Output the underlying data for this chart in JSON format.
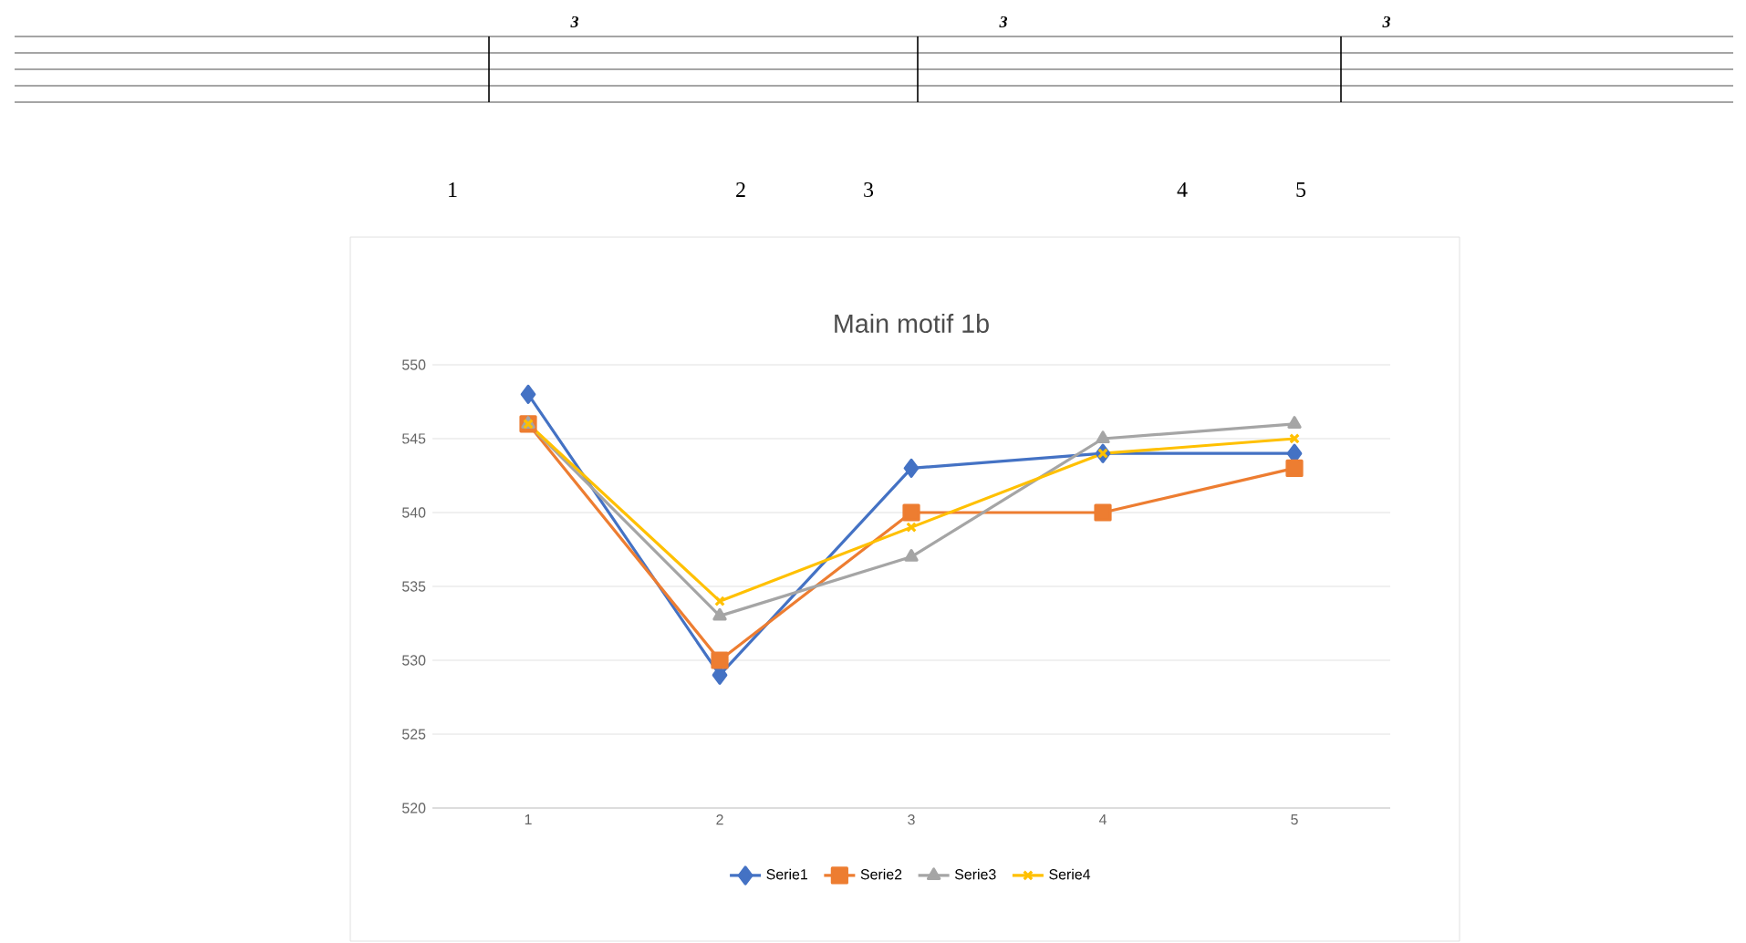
{
  "chart_data": {
    "type": "line",
    "title": "Main motif 1b",
    "categories": [
      "1",
      "2",
      "3",
      "4",
      "5"
    ],
    "series": [
      {
        "name": "Serie1",
        "color": "#4472c4",
        "marker": "diamond",
        "values": [
          548,
          529,
          543,
          544,
          544
        ]
      },
      {
        "name": "Serie2",
        "color": "#ed7d31",
        "marker": "square",
        "values": [
          546,
          530,
          540,
          540,
          543
        ]
      },
      {
        "name": "Serie3",
        "color": "#a5a5a5",
        "marker": "triangle",
        "values": [
          546,
          533,
          537,
          545,
          546
        ]
      },
      {
        "name": "Serie4",
        "color": "#ffc000",
        "marker": "cross",
        "values": [
          546,
          534,
          539,
          544,
          545
        ]
      }
    ],
    "ylim": [
      520,
      550
    ],
    "yticks": [
      520,
      525,
      530,
      535,
      540,
      545,
      550
    ],
    "grid": "y",
    "legend": "bottom",
    "line_style": "solid",
    "annotations": [
      "3",
      "3",
      "3",
      "1",
      "2",
      "3",
      "4",
      "5"
    ]
  }
}
